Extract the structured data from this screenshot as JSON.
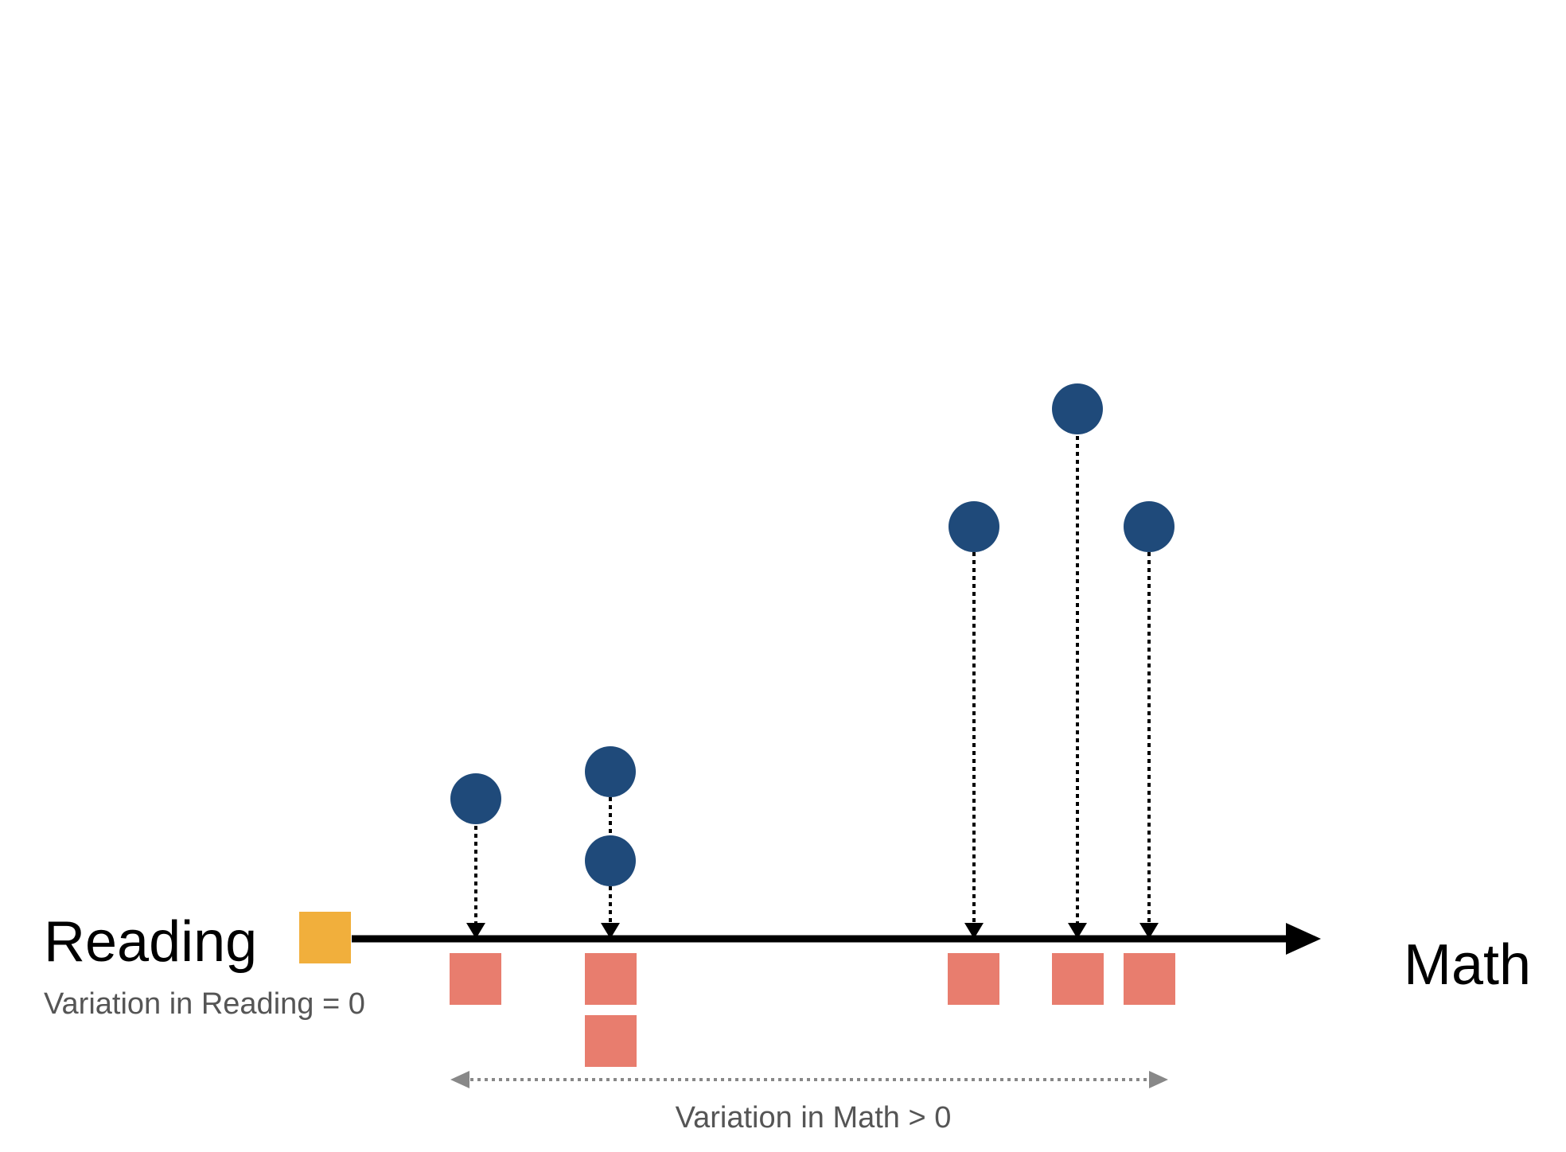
{
  "labels": {
    "reading": "Reading",
    "math": "Math",
    "variation_reading": "Variation in Reading = 0",
    "variation_math": "Variation in Math > 0"
  },
  "colors": {
    "circle": "#1F4A7A",
    "square": "#E87D6E",
    "reading_marker": "#F1AF3C",
    "axis": "#000000",
    "range_arrow": "#888888",
    "note_text": "#555555"
  }
}
